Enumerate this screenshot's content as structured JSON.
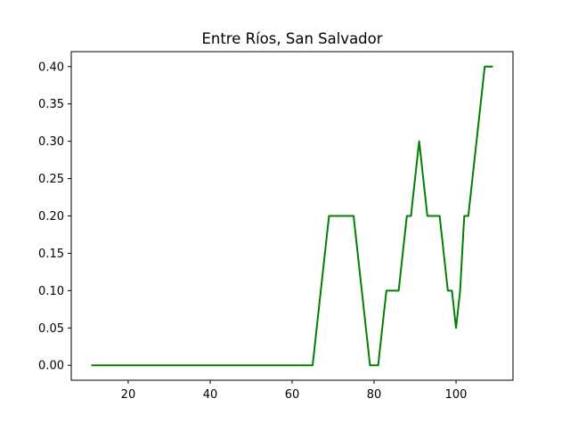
{
  "chart_data": {
    "type": "line",
    "title": "Entre Ríos, San Salvador",
    "xlabel": "",
    "ylabel": "",
    "xlim": [
      6.1,
      113.9
    ],
    "ylim": [
      -0.02,
      0.42
    ],
    "grid": false,
    "x_ticks": [
      20,
      40,
      60,
      80,
      100
    ],
    "x_tick_labels": [
      "20",
      "40",
      "60",
      "80",
      "100"
    ],
    "y_ticks": [
      0.0,
      0.05,
      0.1,
      0.15,
      0.2,
      0.25,
      0.3,
      0.35,
      0.4
    ],
    "y_tick_labels": [
      "0.00",
      "0.05",
      "0.10",
      "0.15",
      "0.20",
      "0.25",
      "0.30",
      "0.35",
      "0.40"
    ],
    "series": [
      {
        "color": "#008000",
        "x": [
          11,
          65,
          69,
          75,
          79,
          81,
          83,
          86,
          88,
          89,
          91,
          93,
          96,
          98,
          99,
          100,
          101,
          102,
          103,
          107,
          109
        ],
        "y": [
          0.0,
          0.0,
          0.2,
          0.2,
          0.0,
          0.0,
          0.1,
          0.1,
          0.2,
          0.2,
          0.3,
          0.2,
          0.2,
          0.1,
          0.1,
          0.05,
          0.1,
          0.2,
          0.2,
          0.4,
          0.4
        ]
      }
    ]
  }
}
